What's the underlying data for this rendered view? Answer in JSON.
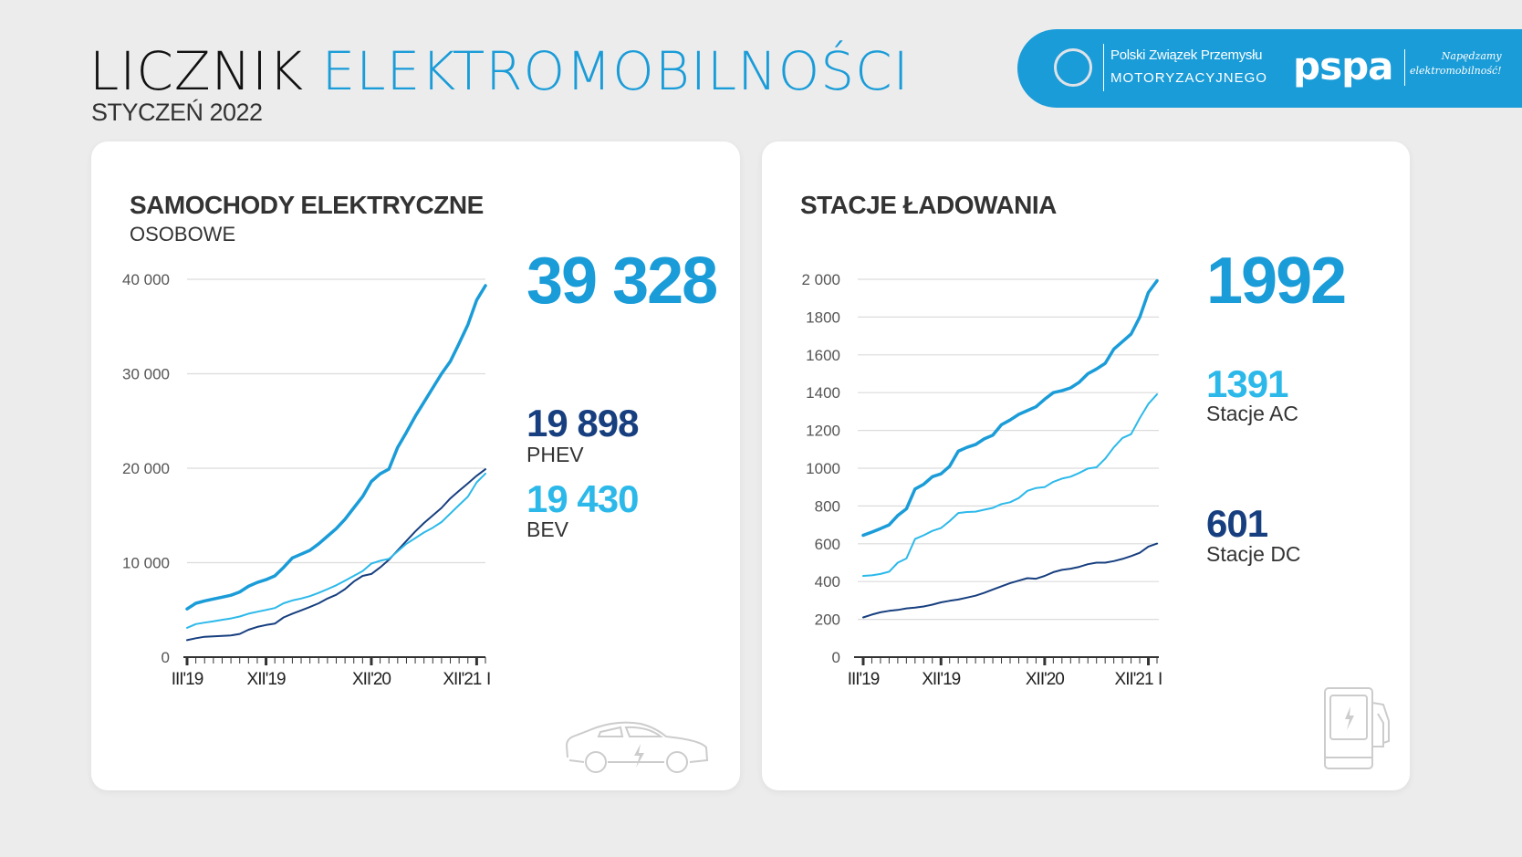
{
  "header": {
    "title_part1": "LICZNIK",
    "title_part2": "ELEKTROMOBILNOŚCI",
    "subtitle": "STYCZEŃ 2022"
  },
  "banner": {
    "pzpm_line1": "Polski Związek Przemysłu",
    "pzpm_line2": "MOTORYZACYJNEGO",
    "pspa_logo": "pspa",
    "pspa_tagline_line1": "Napędzamy",
    "pspa_tagline_line2": "elektromobilność!"
  },
  "colors": {
    "total": "#1a9cd8",
    "phev_navy": "#173f7f",
    "bev_cyan": "#2cb9ea",
    "brand": "#1a9cd8"
  },
  "cars": {
    "title": "SAMOCHODY ELEKTRYCZNE",
    "subtitle": "OSOBOWE",
    "total": "39 328",
    "phev_value": "19 898",
    "phev_label": "PHEV",
    "bev_value": "19 430",
    "bev_label": "BEV",
    "icon": "electric-car-icon"
  },
  "stations": {
    "title": "STACJE ŁADOWANIA",
    "total": "1992",
    "ac_value": "1391",
    "ac_label": "Stacje AC",
    "dc_value": "601",
    "dc_label": "Stacje DC",
    "icon": "charging-station-icon"
  },
  "chart_data": [
    {
      "type": "line",
      "x_tick_labels": [
        "III'19",
        "XII'19",
        "XII'20",
        "XII'21",
        "I"
      ],
      "x_tick_indices": [
        0,
        9,
        21,
        33,
        34
      ],
      "y_ticks": [
        "0",
        "10 000",
        "20 000",
        "30 000",
        "40 000"
      ],
      "ylim": [
        0,
        40000
      ],
      "grid": true,
      "series": [
        {
          "key": "total",
          "color": "#1a9cd8",
          "values": [
            5100,
            5700,
            5950,
            6150,
            6350,
            6550,
            6900,
            7500,
            7900,
            8200,
            8600,
            9500,
            10500,
            10900,
            11300,
            12000,
            12800,
            13600,
            14600,
            15800,
            17000,
            18600,
            19400,
            19900,
            22200,
            23800,
            25500,
            27000,
            28500,
            30000,
            31300,
            33200,
            35200,
            37800,
            39328
          ]
        },
        {
          "key": "phev",
          "name": "PHEV",
          "color": "#173f7f",
          "values": [
            1800,
            2000,
            2150,
            2200,
            2250,
            2300,
            2450,
            2900,
            3200,
            3400,
            3550,
            4200,
            4600,
            4950,
            5300,
            5700,
            6200,
            6600,
            7200,
            8000,
            8600,
            8800,
            9500,
            10300,
            11300,
            12300,
            13300,
            14200,
            15000,
            15800,
            16800,
            17600,
            18400,
            19200,
            19898
          ]
        },
        {
          "key": "bev",
          "name": "BEV",
          "color": "#2cb9ea",
          "values": [
            3100,
            3500,
            3650,
            3800,
            3950,
            4100,
            4300,
            4600,
            4800,
            5000,
            5200,
            5700,
            6000,
            6200,
            6450,
            6800,
            7200,
            7600,
            8100,
            8600,
            9100,
            9900,
            10200,
            10400,
            11200,
            12000,
            12600,
            13200,
            13700,
            14300,
            15200,
            16100,
            17000,
            18500,
            19430
          ]
        }
      ]
    },
    {
      "type": "line",
      "x_tick_labels": [
        "III'19",
        "XII'19",
        "XII'20",
        "XII'21",
        "I"
      ],
      "x_tick_indices": [
        0,
        9,
        21,
        33,
        34
      ],
      "y_ticks": [
        "0",
        "200",
        "400",
        "600",
        "800",
        "1000",
        "1200",
        "1400",
        "1600",
        "1800",
        "2 000"
      ],
      "ylim": [
        0,
        2000
      ],
      "grid": true,
      "series": [
        {
          "key": "total",
          "color": "#1a9cd8",
          "values": [
            645,
            662,
            680,
            700,
            750,
            785,
            890,
            915,
            955,
            970,
            1010,
            1090,
            1110,
            1125,
            1155,
            1175,
            1230,
            1255,
            1285,
            1305,
            1325,
            1365,
            1400,
            1410,
            1425,
            1455,
            1500,
            1525,
            1555,
            1630,
            1670,
            1710,
            1800,
            1930,
            1992
          ]
        },
        {
          "key": "ac",
          "name": "Stacje AC",
          "color": "#2cb9ea",
          "values": [
            430,
            433,
            440,
            452,
            500,
            522,
            625,
            645,
            668,
            683,
            720,
            763,
            768,
            770,
            780,
            790,
            810,
            820,
            842,
            880,
            895,
            900,
            928,
            945,
            955,
            975,
            998,
            1005,
            1050,
            1110,
            1160,
            1180,
            1265,
            1340,
            1391
          ]
        },
        {
          "key": "dc",
          "name": "Stacje DC",
          "color": "#173f7f",
          "values": [
            210,
            225,
            237,
            245,
            250,
            258,
            262,
            268,
            278,
            290,
            298,
            305,
            315,
            325,
            340,
            358,
            375,
            392,
            405,
            418,
            415,
            430,
            450,
            462,
            468,
            478,
            492,
            500,
            500,
            508,
            520,
            535,
            552,
            585,
            601
          ]
        }
      ]
    }
  ]
}
